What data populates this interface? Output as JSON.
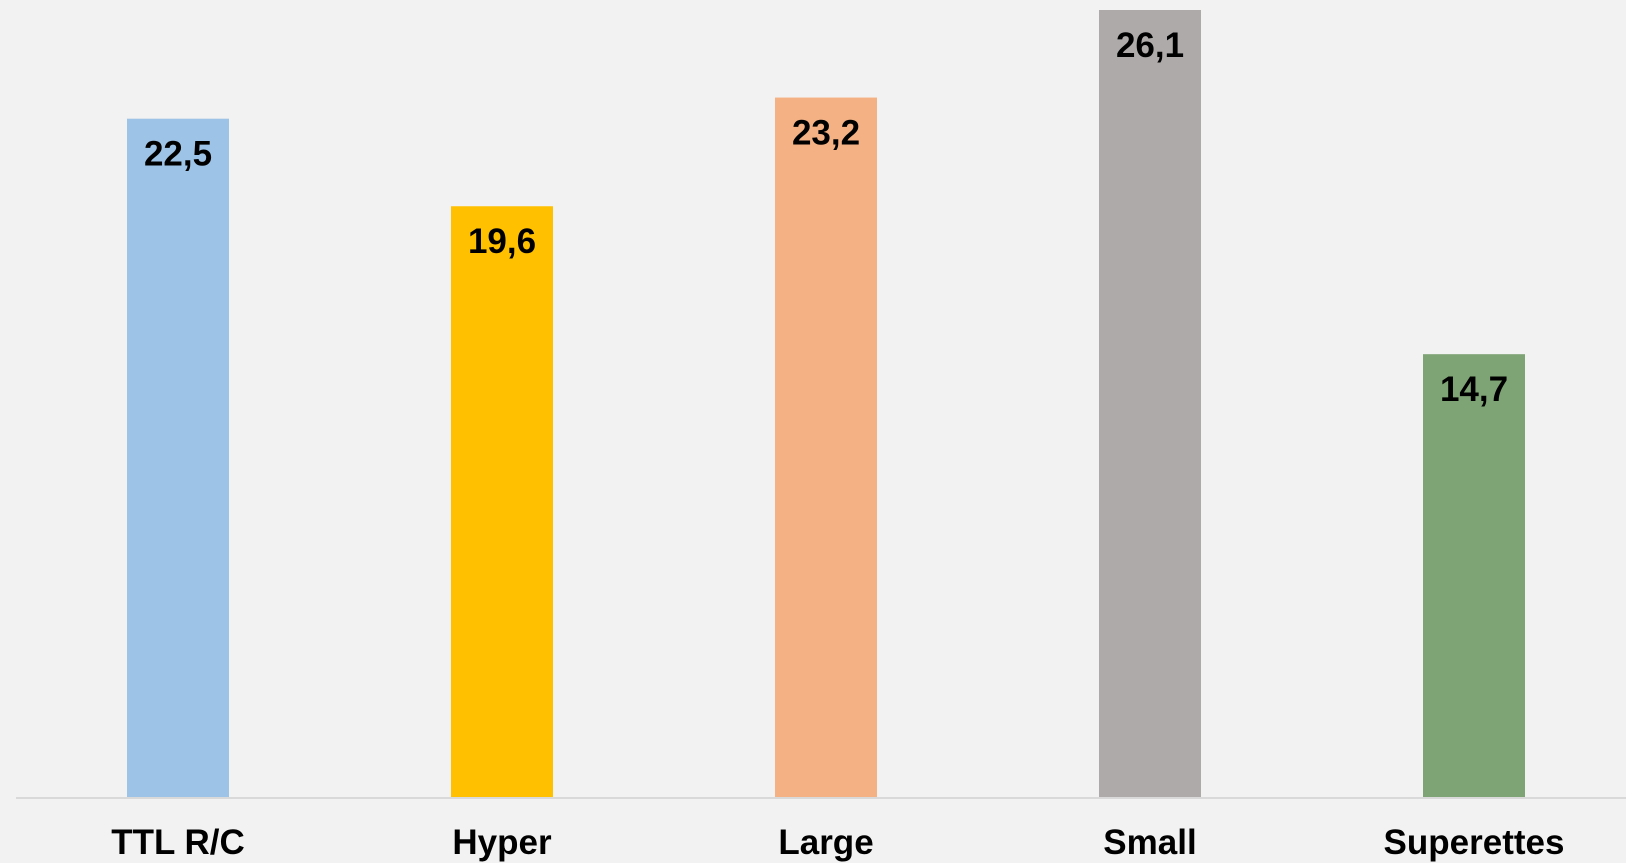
{
  "chart_data": {
    "type": "bar",
    "categories": [
      "TTL R/C",
      "Hyper",
      "Large",
      "Small",
      "Superettes"
    ],
    "values": [
      22.5,
      19.6,
      23.2,
      26.1,
      14.7
    ],
    "value_labels": [
      "22,5",
      "19,6",
      "23,2",
      "26,1",
      "14,7"
    ],
    "colors": [
      "#9dc3e6",
      "#ffc000",
      "#f4b183",
      "#aeaaaa",
      "#7ea374"
    ],
    "title": "",
    "xlabel": "",
    "ylabel": "",
    "ylim": [
      0,
      26.1
    ],
    "grid": false,
    "legend": "none",
    "baseline_color": "#d9d9d9",
    "background": "#f2f2f2"
  }
}
